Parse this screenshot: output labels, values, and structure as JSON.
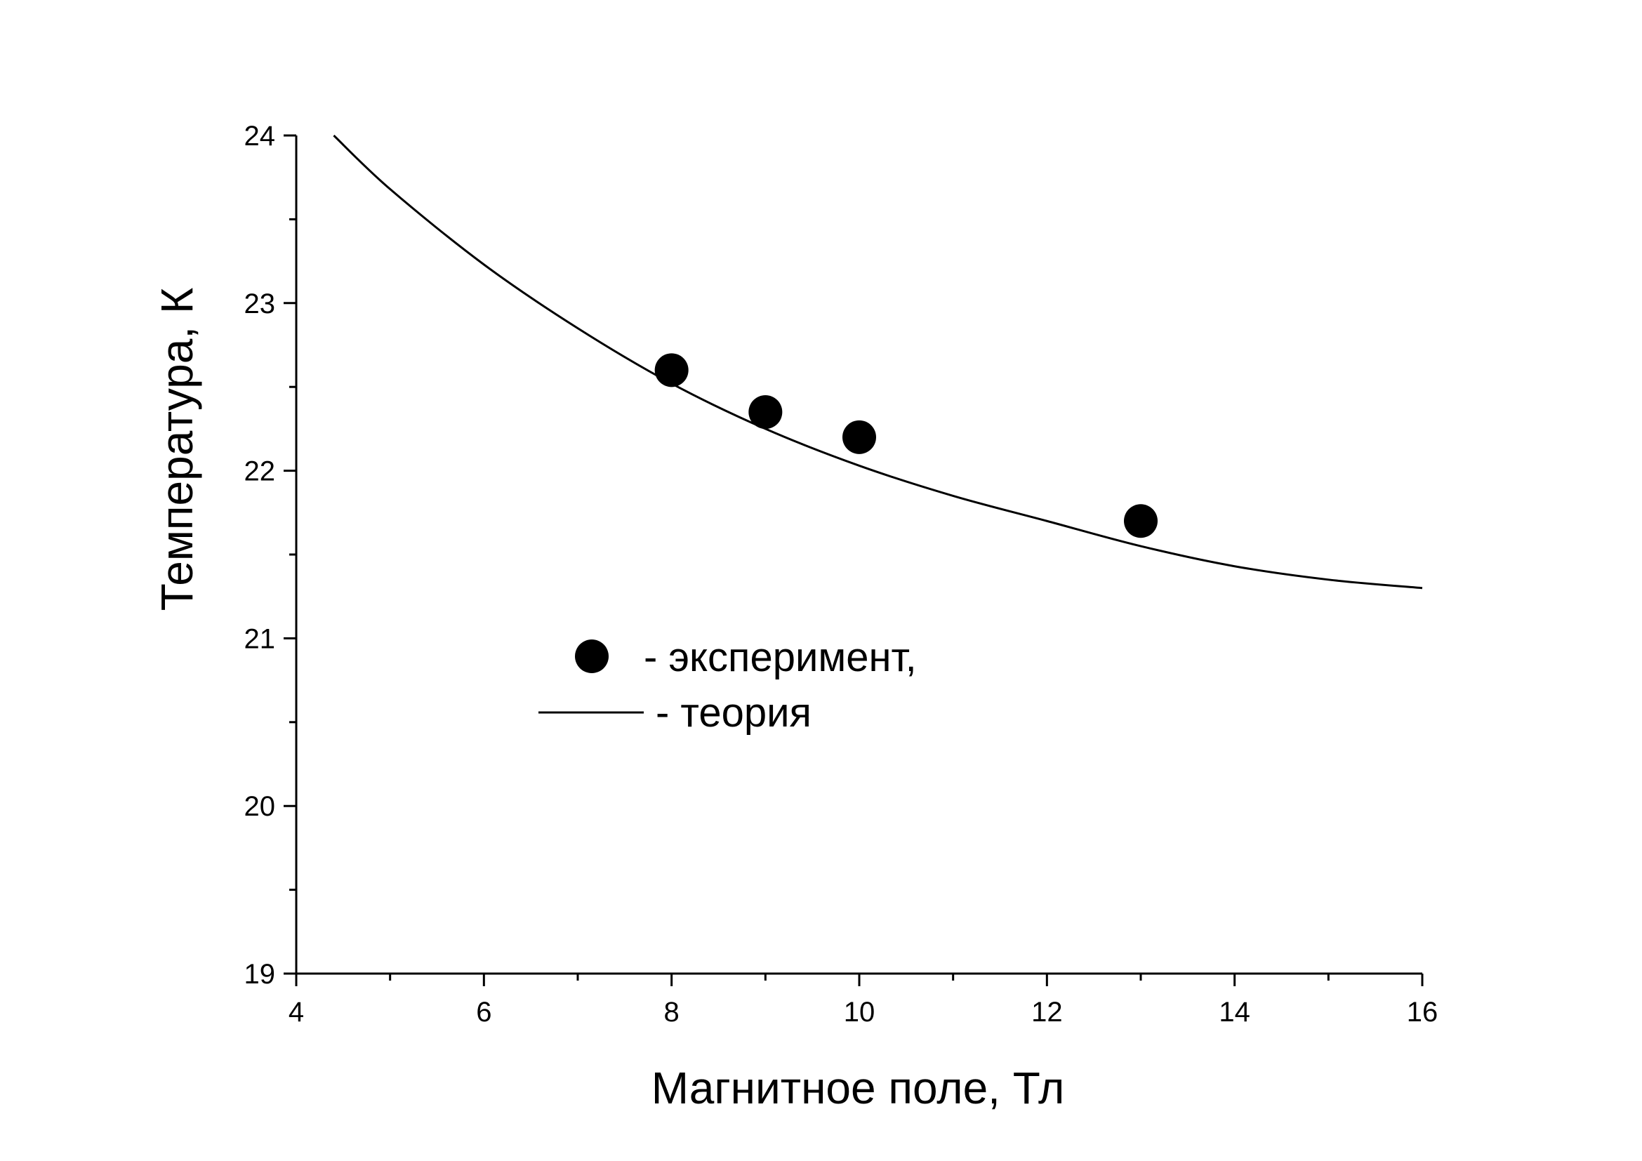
{
  "chart_data": {
    "type": "scatter",
    "title": "",
    "xlabel": "Магнитное поле, Тл",
    "ylabel": "Температура, К",
    "xlim": [
      4,
      16
    ],
    "ylim": [
      19,
      24
    ],
    "x_ticks": [
      "4",
      "6",
      "8",
      "10",
      "12",
      "14",
      "16"
    ],
    "y_ticks": [
      "19",
      "20",
      "21",
      "22",
      "23",
      "24"
    ],
    "grid": false,
    "legend_position": "center-left",
    "series": [
      {
        "name": "- эксперимент,",
        "kind": "scatter",
        "marker": "filled-circle",
        "color": "#000000",
        "points": [
          {
            "x": 8,
            "y": 22.6
          },
          {
            "x": 9,
            "y": 22.35
          },
          {
            "x": 10,
            "y": 22.2
          },
          {
            "x": 13,
            "y": 21.7
          }
        ]
      },
      {
        "name": "- теория",
        "kind": "line",
        "color": "#000000",
        "points": [
          {
            "x": 4.4,
            "y": 24.0
          },
          {
            "x": 5,
            "y": 23.68
          },
          {
            "x": 6,
            "y": 23.23
          },
          {
            "x": 7,
            "y": 22.85
          },
          {
            "x": 8,
            "y": 22.52
          },
          {
            "x": 9,
            "y": 22.25
          },
          {
            "x": 10,
            "y": 22.03
          },
          {
            "x": 11,
            "y": 21.85
          },
          {
            "x": 12,
            "y": 21.7
          },
          {
            "x": 13,
            "y": 21.55
          },
          {
            "x": 14,
            "y": 21.43
          },
          {
            "x": 15,
            "y": 21.35
          },
          {
            "x": 16,
            "y": 21.3
          }
        ]
      }
    ]
  }
}
